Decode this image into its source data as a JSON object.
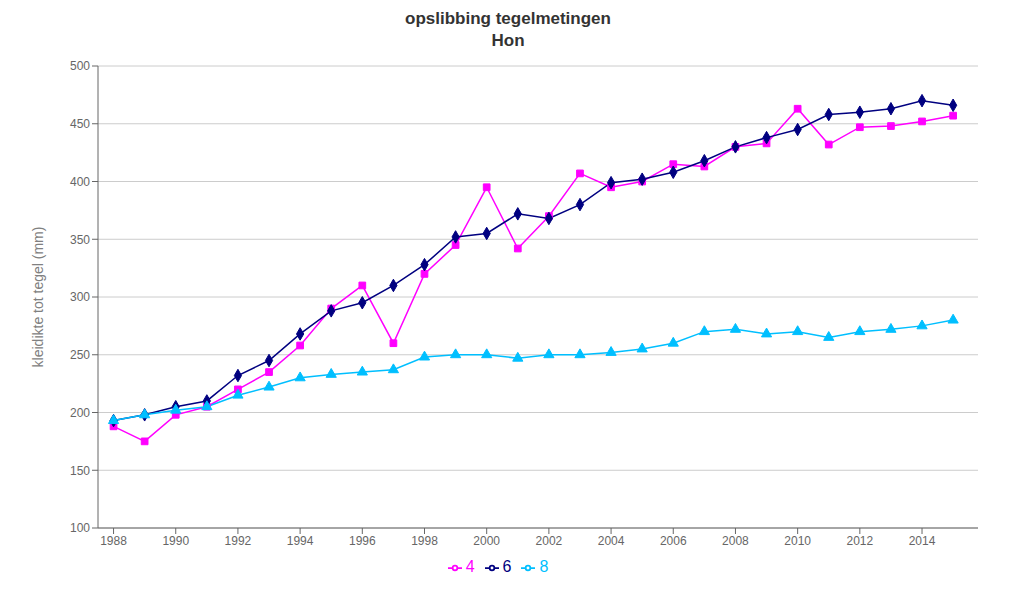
{
  "chart_data": {
    "type": "line",
    "title": "opslibbing tegelmetingen\nHon",
    "y_label": "kleidikte tot tegel (mm)",
    "x": [
      1988,
      1989,
      1990,
      1991,
      1992,
      1993,
      1994,
      1995,
      1996,
      1997,
      1998,
      1999,
      2000,
      2001,
      2002,
      2003,
      2004,
      2005,
      2006,
      2007,
      2008,
      2009,
      2010,
      2011,
      2012,
      2013,
      2014,
      2015
    ],
    "series": [
      {
        "name": "4",
        "color": "#FF00FF",
        "marker": "square",
        "values": [
          188,
          175,
          198,
          205,
          220,
          235,
          258,
          290,
          310,
          260,
          320,
          345,
          395,
          342,
          370,
          407,
          395,
          400,
          415,
          413,
          430,
          433,
          463,
          432,
          447,
          448,
          452,
          457
        ]
      },
      {
        "name": "6",
        "color": "#000080",
        "marker": "diamond",
        "values": [
          193,
          198,
          205,
          210,
          232,
          245,
          268,
          288,
          295,
          310,
          328,
          352,
          355,
          372,
          368,
          380,
          399,
          402,
          408,
          418,
          430,
          438,
          445,
          458,
          460,
          463,
          470,
          466
        ]
      },
      {
        "name": "8",
        "color": "#00BFFF",
        "marker": "triangle",
        "values": [
          193,
          198,
          202,
          205,
          215,
          222,
          230,
          233,
          235,
          237,
          248,
          250,
          250,
          247,
          250,
          250,
          252,
          255,
          260,
          270,
          272,
          268,
          270,
          265,
          270,
          272,
          275,
          280
        ]
      }
    ],
    "xlim": [
      1987.5,
      2015.8
    ],
    "xticks": [
      1988,
      1990,
      1992,
      1994,
      1996,
      1998,
      2000,
      2002,
      2004,
      2006,
      2008,
      2010,
      2012,
      2014
    ],
    "ylim": [
      100,
      500
    ],
    "yticks": [
      100,
      150,
      200,
      250,
      300,
      350,
      400,
      450,
      500
    ],
    "grid": "y",
    "legend": "bottom"
  }
}
